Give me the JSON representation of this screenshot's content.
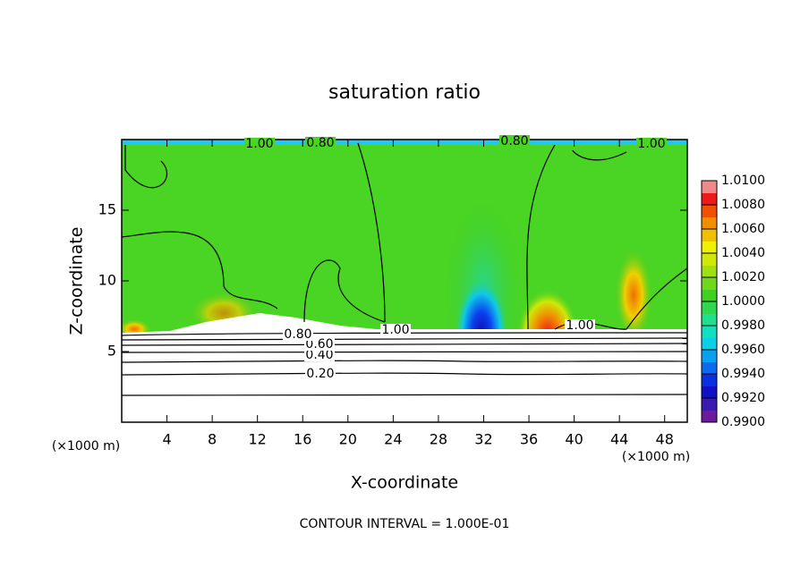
{
  "chart_data": {
    "type": "contour",
    "title": "saturation ratio",
    "x_label": "X-coordinate",
    "y_label": "Z-coordinate",
    "x_unit_left": "(×1000 m)",
    "x_unit_right": "(×1000 m)",
    "footer": "CONTOUR INTERVAL = 1.000E-01",
    "xlim": [
      0,
      50
    ],
    "ylim": [
      0,
      20
    ],
    "xticks": [
      4,
      8,
      12,
      16,
      20,
      24,
      28,
      32,
      36,
      40,
      44,
      48
    ],
    "yticks": [
      5,
      10,
      15
    ],
    "contour_labels": [
      {
        "value": 0.2,
        "label": "0.20"
      },
      {
        "value": 0.4,
        "label": "0.40"
      },
      {
        "value": 0.6,
        "label": "0.60"
      },
      {
        "value": 0.8,
        "label": "0.80"
      },
      {
        "value": 1.0,
        "label": "1.00"
      },
      {
        "value": 1.0,
        "label": "1.00"
      },
      {
        "value": 1.0,
        "label": "1.00"
      },
      {
        "value": 0.8,
        "label": "0.80"
      },
      {
        "value": 0.8,
        "label": "0.80"
      },
      {
        "value": 1.0,
        "label": "1.00"
      }
    ],
    "colorbar": {
      "lim": [
        0.99,
        1.01
      ],
      "ticks": [
        {
          "value": 0.99,
          "label": "0.9900"
        },
        {
          "value": 0.992,
          "label": "0.9920"
        },
        {
          "value": 0.994,
          "label": "0.9940"
        },
        {
          "value": 0.996,
          "label": "0.9960"
        },
        {
          "value": 0.998,
          "label": "0.9980"
        },
        {
          "value": 1.0,
          "label": "1.0000"
        },
        {
          "value": 1.002,
          "label": "1.0020"
        },
        {
          "value": 1.004,
          "label": "1.0040"
        },
        {
          "value": 1.006,
          "label": "1.0060"
        },
        {
          "value": 1.008,
          "label": "1.0080"
        },
        {
          "value": 1.01,
          "label": "1.0100"
        }
      ],
      "colors": [
        "#6a1a9a",
        "#3a1ab0",
        "#1010c8",
        "#0a30e0",
        "#0a6af0",
        "#0aa0f0",
        "#0ad0e8",
        "#10e0c0",
        "#20e090",
        "#30d850",
        "#40d020",
        "#70d818",
        "#a0e010",
        "#d0e808",
        "#f0f000",
        "#f0c000",
        "#f09000",
        "#f05000",
        "#f01818",
        "#f08888"
      ]
    }
  }
}
